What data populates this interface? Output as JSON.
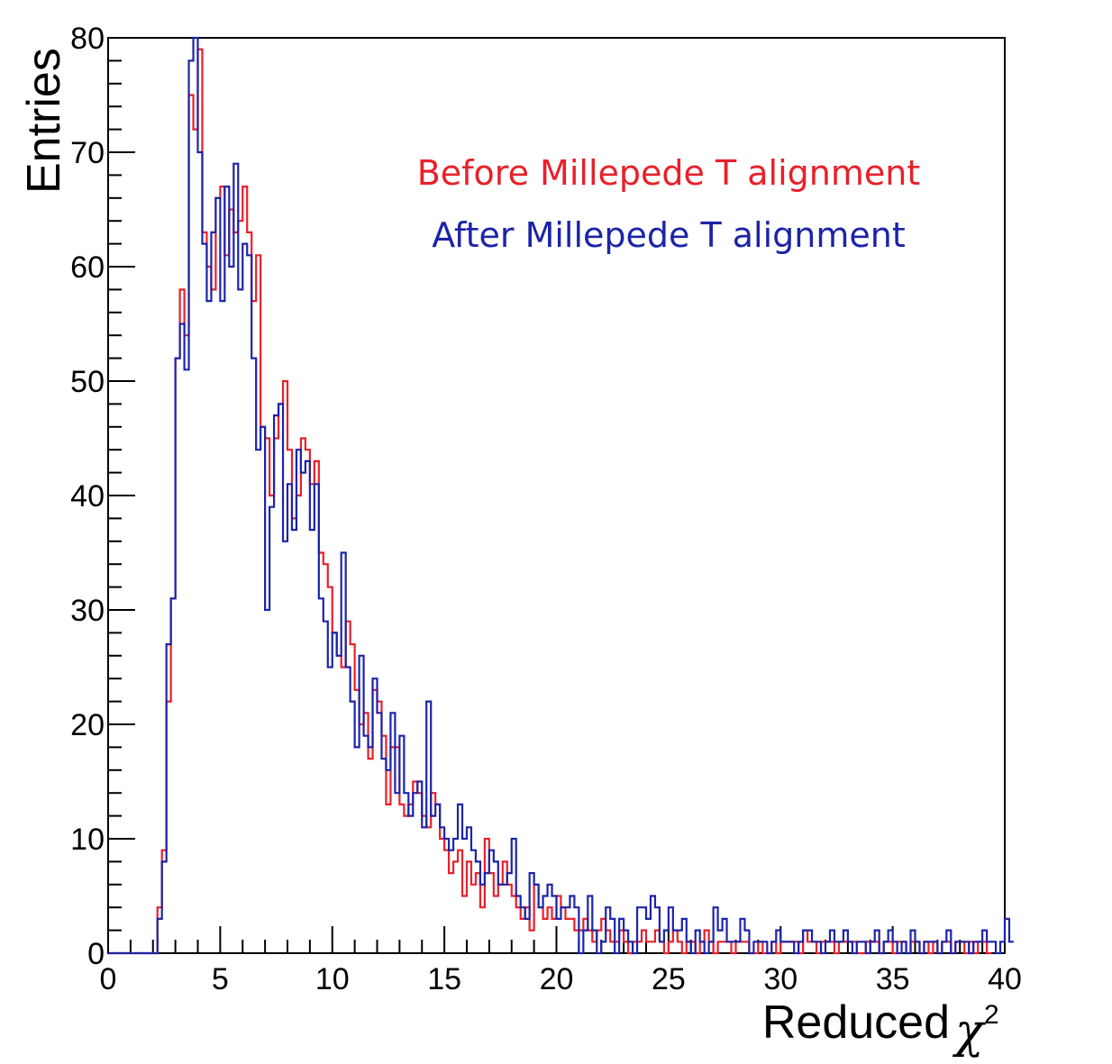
{
  "chart_data": {
    "type": "line",
    "title": "",
    "xlabel": "Reduced",
    "xlabel_symbol": "χ",
    "xlabel_superscript": "2",
    "ylabel": "Entries",
    "xlim": [
      0,
      40
    ],
    "ylim": [
      0,
      80
    ],
    "x_ticks": [
      "0",
      "5",
      "10",
      "15",
      "20",
      "25",
      "30",
      "35",
      "40"
    ],
    "y_ticks": [
      "0",
      "10",
      "20",
      "30",
      "40",
      "50",
      "60",
      "70",
      "80"
    ],
    "grid": false,
    "legend_placement": "top-right",
    "bin_width": 0.2,
    "series": [
      {
        "name": "Before Millepede T alignment",
        "color": "#e8202a",
        "values": [
          0,
          0,
          0,
          0,
          0,
          0,
          0,
          0,
          0,
          0,
          0,
          4,
          9,
          22,
          31,
          52,
          58,
          54,
          75,
          72,
          79,
          63,
          60,
          58,
          66,
          67,
          61,
          65,
          63,
          64,
          67,
          63,
          57,
          61,
          46,
          45,
          40,
          45,
          48,
          50,
          44,
          38,
          40,
          45,
          44,
          41,
          43,
          35,
          34,
          32,
          28,
          26,
          25,
          29,
          27,
          23,
          20,
          21,
          17,
          23,
          22,
          19,
          13,
          18,
          18,
          13,
          12,
          13,
          15,
          14,
          12,
          11,
          14,
          13,
          10,
          9,
          7,
          8,
          9,
          5,
          8,
          6,
          7,
          4,
          10,
          7,
          5,
          6,
          8,
          6,
          5,
          4,
          3,
          4,
          2,
          6,
          4,
          3,
          4,
          3,
          5,
          4,
          3,
          3,
          2,
          2,
          3,
          2,
          1,
          2,
          3,
          2,
          1,
          1,
          2,
          1,
          0,
          1,
          1,
          2,
          1,
          1,
          2,
          1,
          0,
          1,
          2,
          1,
          0,
          1,
          1,
          0,
          1,
          2,
          1,
          0,
          1,
          1,
          1,
          0,
          1,
          1,
          1,
          0,
          0,
          1,
          0,
          0,
          1,
          0,
          1,
          1,
          1,
          1,
          0,
          2,
          1,
          1,
          0,
          1,
          1,
          1,
          0,
          1,
          1,
          1,
          1,
          0,
          0,
          1,
          1,
          1,
          0,
          1,
          1,
          0,
          1,
          1,
          0,
          1,
          1,
          0,
          1,
          0,
          1,
          0,
          1,
          1,
          0,
          1,
          1,
          0,
          1,
          0,
          1,
          1,
          0
        ]
      },
      {
        "name": "After Millepede T alignment",
        "color": "#1c24a8",
        "values": [
          0,
          0,
          0,
          0,
          0,
          0,
          0,
          0,
          0,
          0,
          0,
          3,
          8,
          27,
          31,
          52,
          55,
          51,
          78,
          80,
          70,
          62,
          57,
          63,
          66,
          57,
          67,
          60,
          69,
          58,
          62,
          61,
          52,
          44,
          46,
          30,
          39,
          47,
          48,
          36,
          41,
          37,
          44,
          42,
          43,
          37,
          41,
          31,
          29,
          25,
          28,
          26,
          35,
          25,
          22,
          18,
          26,
          19,
          18,
          24,
          21,
          17,
          16,
          21,
          14,
          19,
          14,
          12,
          14,
          15,
          11,
          22,
          12,
          13,
          11,
          10,
          9,
          10,
          13,
          10,
          11,
          9,
          8,
          6,
          7,
          9,
          8,
          6,
          6,
          7,
          10,
          5,
          4,
          3,
          7,
          6,
          4,
          5,
          6,
          5,
          3,
          4,
          4,
          5,
          4,
          0,
          2,
          5,
          2,
          0,
          1,
          4,
          3,
          0,
          3,
          2,
          1,
          0,
          4,
          4,
          3,
          5,
          4,
          1,
          2,
          4,
          2,
          2,
          3,
          1,
          0,
          2,
          1,
          0,
          1,
          4,
          2,
          3,
          1,
          1,
          1,
          3,
          2,
          0,
          1,
          1,
          1,
          0,
          1,
          2,
          1,
          1,
          1,
          0,
          1,
          2,
          2,
          1,
          1,
          0,
          1,
          2,
          1,
          1,
          2,
          1,
          0,
          1,
          1,
          0,
          1,
          2,
          0,
          1,
          2,
          1,
          0,
          1,
          0,
          2,
          1,
          0,
          1,
          1,
          1,
          0,
          1,
          2,
          0,
          1,
          1,
          1,
          0,
          1,
          1,
          2,
          1,
          1,
          0,
          1,
          3,
          1
        ]
      }
    ]
  }
}
